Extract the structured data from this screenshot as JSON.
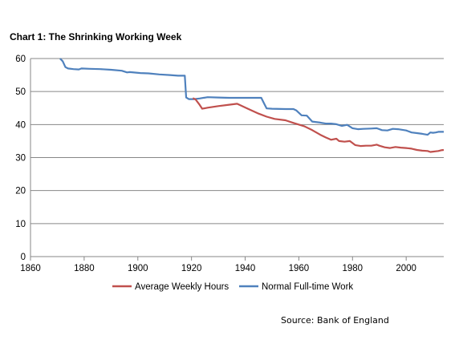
{
  "chart_data": {
    "type": "line",
    "title": "Chart 1: The Shrinking Working Week",
    "source": "Source: Bank of England",
    "xlim": [
      1860,
      2014
    ],
    "ylim": [
      0,
      60
    ],
    "x_ticks": [
      1860,
      1880,
      1900,
      1920,
      1940,
      1960,
      1980,
      2000
    ],
    "y_ticks": [
      0,
      10,
      20,
      30,
      40,
      50,
      60
    ],
    "grid": "horizontal",
    "legend_position": "bottom",
    "series": [
      {
        "name": "Average Weekly Hours",
        "color": "#c0504d",
        "points": [
          [
            1920.5,
            48
          ],
          [
            1921.5,
            47.6
          ],
          [
            1923,
            46
          ],
          [
            1924,
            44.8
          ],
          [
            1926,
            45.1
          ],
          [
            1930,
            45.6
          ],
          [
            1934,
            46
          ],
          [
            1937,
            46.3
          ],
          [
            1941,
            44.8
          ],
          [
            1945,
            43.3
          ],
          [
            1948,
            42.4
          ],
          [
            1951,
            41.7
          ],
          [
            1955,
            41.3
          ],
          [
            1958,
            40.5
          ],
          [
            1962,
            39.5
          ],
          [
            1965,
            38.3
          ],
          [
            1968,
            36.9
          ],
          [
            1970,
            36.1
          ],
          [
            1972,
            35.4
          ],
          [
            1974,
            35.7
          ],
          [
            1975,
            35
          ],
          [
            1977,
            34.8
          ],
          [
            1979,
            35
          ],
          [
            1981,
            33.8
          ],
          [
            1983,
            33.5
          ],
          [
            1985,
            33.6
          ],
          [
            1987,
            33.6
          ],
          [
            1989,
            33.9
          ],
          [
            1990,
            33.6
          ],
          [
            1992,
            33.1
          ],
          [
            1994,
            32.9
          ],
          [
            1996,
            33.2
          ],
          [
            1998,
            33
          ],
          [
            2000,
            32.9
          ],
          [
            2002,
            32.7
          ],
          [
            2004,
            32.3
          ],
          [
            2006,
            32.1
          ],
          [
            2008,
            32
          ],
          [
            2009,
            31.7
          ],
          [
            2010,
            31.8
          ],
          [
            2011,
            31.9
          ],
          [
            2012,
            32
          ],
          [
            2013,
            32.2
          ],
          [
            2014,
            32.3
          ]
        ]
      },
      {
        "name": "Normal Full-time Work",
        "color": "#4f81bd",
        "points": [
          [
            1871,
            60
          ],
          [
            1872,
            59.2
          ],
          [
            1873,
            57.4
          ],
          [
            1874,
            57
          ],
          [
            1876,
            56.8
          ],
          [
            1878,
            56.7
          ],
          [
            1879,
            57
          ],
          [
            1882,
            56.9
          ],
          [
            1886,
            56.8
          ],
          [
            1890,
            56.6
          ],
          [
            1894,
            56.3
          ],
          [
            1896,
            55.8
          ],
          [
            1897,
            55.9
          ],
          [
            1901,
            55.6
          ],
          [
            1904,
            55.5
          ],
          [
            1908,
            55.2
          ],
          [
            1912,
            55
          ],
          [
            1915,
            54.8
          ],
          [
            1917,
            54.8
          ],
          [
            1917.5,
            54.8
          ],
          [
            1918,
            48.2
          ],
          [
            1919,
            47.7
          ],
          [
            1921,
            47.7
          ],
          [
            1923,
            47.9
          ],
          [
            1926,
            48.3
          ],
          [
            1930,
            48.2
          ],
          [
            1934,
            48.1
          ],
          [
            1937,
            48.1
          ],
          [
            1942,
            48.1
          ],
          [
            1946,
            48.1
          ],
          [
            1947,
            46.5
          ],
          [
            1948,
            44.9
          ],
          [
            1950,
            44.8
          ],
          [
            1955,
            44.7
          ],
          [
            1958,
            44.7
          ],
          [
            1959,
            44.3
          ],
          [
            1961,
            42.8
          ],
          [
            1963,
            42.7
          ],
          [
            1965,
            40.9
          ],
          [
            1968,
            40.6
          ],
          [
            1970,
            40.3
          ],
          [
            1972,
            40.3
          ],
          [
            1974,
            40.1
          ],
          [
            1976,
            39.6
          ],
          [
            1978,
            39.9
          ],
          [
            1980,
            38.9
          ],
          [
            1982,
            38.6
          ],
          [
            1984,
            38.7
          ],
          [
            1987,
            38.8
          ],
          [
            1989,
            38.9
          ],
          [
            1991,
            38.3
          ],
          [
            1993,
            38.2
          ],
          [
            1995,
            38.7
          ],
          [
            1997,
            38.6
          ],
          [
            2000,
            38.2
          ],
          [
            2002,
            37.6
          ],
          [
            2004,
            37.4
          ],
          [
            2006,
            37.2
          ],
          [
            2008,
            36.9
          ],
          [
            2009,
            37.6
          ],
          [
            2010,
            37.5
          ],
          [
            2011,
            37.6
          ],
          [
            2012,
            37.8
          ],
          [
            2014,
            37.8
          ]
        ]
      }
    ]
  }
}
